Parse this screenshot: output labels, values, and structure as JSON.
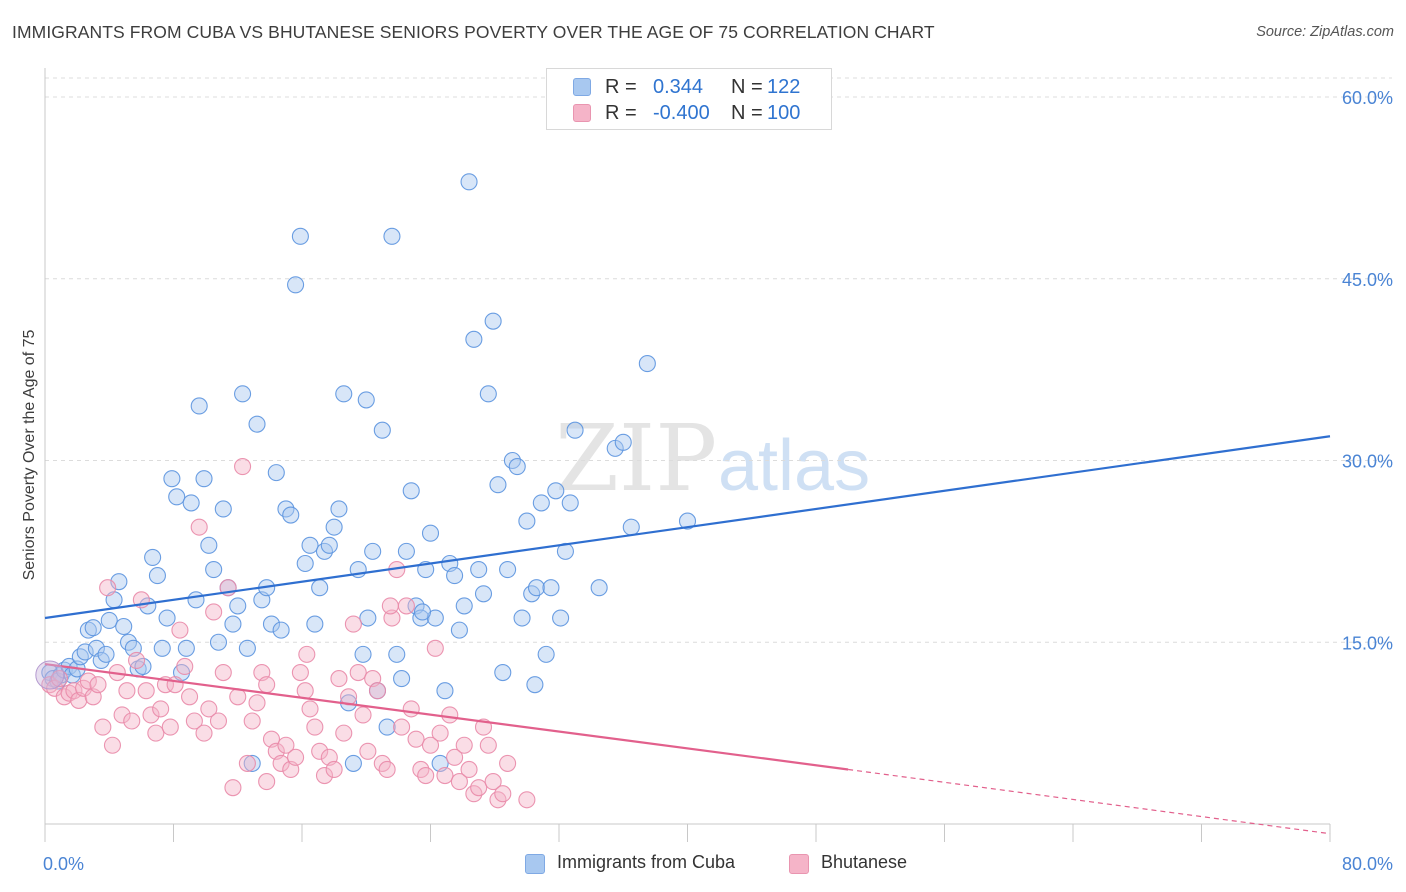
{
  "title": "IMMIGRANTS FROM CUBA VS BHUTANESE SENIORS POVERTY OVER THE AGE OF 75 CORRELATION CHART",
  "source": "Source: ZipAtlas.com",
  "watermark": {
    "zip": "ZIP",
    "atlas": "atlas"
  },
  "legend": {
    "r_label": "R =",
    "n_label": "N =",
    "rows": [
      {
        "r": "0.344",
        "n": "122",
        "color": "#a8c8f0"
      },
      {
        "r": "-0.400",
        "n": "100",
        "color": "#f5b4c8"
      }
    ]
  },
  "chart_data": {
    "type": "scatter",
    "title": "IMMIGRANTS FROM CUBA VS BHUTANESE SENIORS POVERTY OVER THE AGE OF 75 CORRELATION CHART",
    "xlabel": "",
    "ylabel": "Seniors Poverty Over the Age of 75",
    "xlim": [
      0,
      80
    ],
    "ylim": [
      0,
      60
    ],
    "x_tick_labels": [
      "0.0%",
      "80.0%"
    ],
    "y_tick_labels": [
      "15.0%",
      "30.0%",
      "45.0%",
      "60.0%"
    ],
    "y_ticks": [
      15,
      30,
      45,
      60
    ],
    "grid": true,
    "legend_position": "top-center",
    "series": [
      {
        "name": "Immigrants from Cuba",
        "color": "#5b93df",
        "fill": "#a8c8f0",
        "trend": {
          "x": [
            0,
            80
          ],
          "y": [
            17.0,
            32.0
          ],
          "color": "#2f6fd0",
          "dashed_from": null
        },
        "points": [
          [
            0.3,
            12.5
          ],
          [
            0.5,
            12.0
          ],
          [
            0.8,
            11.8
          ],
          [
            1.0,
            12.3
          ],
          [
            1.2,
            12.7
          ],
          [
            1.5,
            13.0
          ],
          [
            1.7,
            12.3
          ],
          [
            2.0,
            12.8
          ],
          [
            2.2,
            13.8
          ],
          [
            2.5,
            14.2
          ],
          [
            2.7,
            16.0
          ],
          [
            3.0,
            16.2
          ],
          [
            3.2,
            14.5
          ],
          [
            3.5,
            13.5
          ],
          [
            3.8,
            14.0
          ],
          [
            4.0,
            16.8
          ],
          [
            4.3,
            18.5
          ],
          [
            4.6,
            20.0
          ],
          [
            4.9,
            16.3
          ],
          [
            5.2,
            15.0
          ],
          [
            5.5,
            14.5
          ],
          [
            5.8,
            12.8
          ],
          [
            6.1,
            13.0
          ],
          [
            6.4,
            18.0
          ],
          [
            6.7,
            22.0
          ],
          [
            7.0,
            20.5
          ],
          [
            7.3,
            14.5
          ],
          [
            7.6,
            17.0
          ],
          [
            7.9,
            28.5
          ],
          [
            8.2,
            27.0
          ],
          [
            8.5,
            12.5
          ],
          [
            8.8,
            14.5
          ],
          [
            9.1,
            26.5
          ],
          [
            9.4,
            18.5
          ],
          [
            9.6,
            34.5
          ],
          [
            9.9,
            28.5
          ],
          [
            10.2,
            23.0
          ],
          [
            10.5,
            21.0
          ],
          [
            10.8,
            15.0
          ],
          [
            11.1,
            26.0
          ],
          [
            11.4,
            19.5
          ],
          [
            11.7,
            16.5
          ],
          [
            12.0,
            18.0
          ],
          [
            12.3,
            35.5
          ],
          [
            12.6,
            14.5
          ],
          [
            12.9,
            5.0
          ],
          [
            13.2,
            33.0
          ],
          [
            13.5,
            18.5
          ],
          [
            13.8,
            19.5
          ],
          [
            14.1,
            16.5
          ],
          [
            14.4,
            29.0
          ],
          [
            14.7,
            16.0
          ],
          [
            15.0,
            26.0
          ],
          [
            15.3,
            25.5
          ],
          [
            15.6,
            44.5
          ],
          [
            15.9,
            48.5
          ],
          [
            16.2,
            21.5
          ],
          [
            16.5,
            23.0
          ],
          [
            16.8,
            16.5
          ],
          [
            17.1,
            19.5
          ],
          [
            17.4,
            22.5
          ],
          [
            17.7,
            23.0
          ],
          [
            18.0,
            24.5
          ],
          [
            18.3,
            26.0
          ],
          [
            18.6,
            35.5
          ],
          [
            18.9,
            10.0
          ],
          [
            19.2,
            5.0
          ],
          [
            19.5,
            21.0
          ],
          [
            19.8,
            14.0
          ],
          [
            20.1,
            17.0
          ],
          [
            20.4,
            22.5
          ],
          [
            20.7,
            11.0
          ],
          [
            21.0,
            32.5
          ],
          [
            21.3,
            8.0
          ],
          [
            21.6,
            48.5
          ],
          [
            21.9,
            14.0
          ],
          [
            22.2,
            12.0
          ],
          [
            22.5,
            22.5
          ],
          [
            22.8,
            27.5
          ],
          [
            23.1,
            18.0
          ],
          [
            23.4,
            17.0
          ],
          [
            23.7,
            21.0
          ],
          [
            24.0,
            24.0
          ],
          [
            24.3,
            17.0
          ],
          [
            24.6,
            5.0
          ],
          [
            24.9,
            11.0
          ],
          [
            25.2,
            21.5
          ],
          [
            25.5,
            20.5
          ],
          [
            25.8,
            16.0
          ],
          [
            26.1,
            18.0
          ],
          [
            26.4,
            53.0
          ],
          [
            26.7,
            40.0
          ],
          [
            27.0,
            21.0
          ],
          [
            27.3,
            19.0
          ],
          [
            27.6,
            35.5
          ],
          [
            27.9,
            41.5
          ],
          [
            28.2,
            28.0
          ],
          [
            28.5,
            12.5
          ],
          [
            28.8,
            21.0
          ],
          [
            29.1,
            30.0
          ],
          [
            29.4,
            29.5
          ],
          [
            29.7,
            17.0
          ],
          [
            30.0,
            25.0
          ],
          [
            30.3,
            19.0
          ],
          [
            30.6,
            19.5
          ],
          [
            30.9,
            26.5
          ],
          [
            31.2,
            14.0
          ],
          [
            31.5,
            19.5
          ],
          [
            31.8,
            27.5
          ],
          [
            32.1,
            17.0
          ],
          [
            32.4,
            22.5
          ],
          [
            32.7,
            26.5
          ],
          [
            33.0,
            32.5
          ],
          [
            34.5,
            19.5
          ],
          [
            35.5,
            31.0
          ],
          [
            36.0,
            31.5
          ],
          [
            37.5,
            38.0
          ],
          [
            40.0,
            25.0
          ],
          [
            36.5,
            24.5
          ],
          [
            30.5,
            11.5
          ],
          [
            23.5,
            17.5
          ],
          [
            20.0,
            35.0
          ]
        ]
      },
      {
        "name": "Bhutanese",
        "color": "#e98aa8",
        "fill": "#f5b4c8",
        "trend": {
          "x": [
            0,
            50,
            80
          ],
          "y": [
            13.2,
            4.5,
            -0.8
          ],
          "color": "#e2608c",
          "dashed_from": 50
        },
        "points": [
          [
            0.3,
            11.5
          ],
          [
            0.6,
            11.2
          ],
          [
            0.9,
            12.0
          ],
          [
            1.2,
            10.5
          ],
          [
            1.5,
            10.8
          ],
          [
            1.8,
            11.0
          ],
          [
            2.1,
            10.2
          ],
          [
            2.4,
            11.2
          ],
          [
            2.7,
            11.8
          ],
          [
            3.0,
            10.5
          ],
          [
            3.3,
            11.5
          ],
          [
            3.6,
            8.0
          ],
          [
            3.9,
            19.5
          ],
          [
            4.2,
            6.5
          ],
          [
            4.5,
            12.5
          ],
          [
            4.8,
            9.0
          ],
          [
            5.1,
            11.0
          ],
          [
            5.4,
            8.5
          ],
          [
            5.7,
            13.5
          ],
          [
            6.0,
            18.5
          ],
          [
            6.3,
            11.0
          ],
          [
            6.6,
            9.0
          ],
          [
            6.9,
            7.5
          ],
          [
            7.2,
            9.5
          ],
          [
            7.5,
            11.5
          ],
          [
            7.8,
            8.0
          ],
          [
            8.1,
            11.5
          ],
          [
            8.4,
            16.0
          ],
          [
            8.7,
            13.0
          ],
          [
            9.0,
            10.5
          ],
          [
            9.3,
            8.5
          ],
          [
            9.6,
            24.5
          ],
          [
            9.9,
            7.5
          ],
          [
            10.2,
            9.5
          ],
          [
            10.5,
            17.5
          ],
          [
            10.8,
            8.5
          ],
          [
            11.1,
            12.5
          ],
          [
            11.4,
            19.5
          ],
          [
            11.7,
            3.0
          ],
          [
            12.0,
            10.5
          ],
          [
            12.3,
            29.5
          ],
          [
            12.6,
            5.0
          ],
          [
            12.9,
            8.5
          ],
          [
            13.2,
            10.0
          ],
          [
            13.5,
            12.5
          ],
          [
            13.8,
            11.5
          ],
          [
            14.1,
            7.0
          ],
          [
            14.4,
            6.0
          ],
          [
            14.7,
            5.0
          ],
          [
            15.0,
            6.5
          ],
          [
            15.3,
            4.5
          ],
          [
            15.6,
            5.5
          ],
          [
            15.9,
            12.5
          ],
          [
            16.2,
            11.0
          ],
          [
            16.5,
            9.5
          ],
          [
            16.8,
            8.0
          ],
          [
            17.1,
            6.0
          ],
          [
            17.4,
            4.0
          ],
          [
            17.7,
            5.5
          ],
          [
            18.0,
            4.5
          ],
          [
            18.3,
            12.0
          ],
          [
            18.6,
            7.5
          ],
          [
            18.9,
            10.5
          ],
          [
            19.2,
            16.5
          ],
          [
            19.5,
            12.5
          ],
          [
            19.8,
            9.0
          ],
          [
            20.1,
            6.0
          ],
          [
            20.4,
            12.0
          ],
          [
            20.7,
            11.0
          ],
          [
            21.0,
            5.0
          ],
          [
            21.3,
            4.5
          ],
          [
            21.6,
            17.0
          ],
          [
            21.9,
            21.0
          ],
          [
            22.2,
            8.0
          ],
          [
            22.5,
            18.0
          ],
          [
            22.8,
            9.5
          ],
          [
            23.1,
            7.0
          ],
          [
            23.4,
            4.5
          ],
          [
            23.7,
            4.0
          ],
          [
            24.0,
            6.5
          ],
          [
            24.3,
            14.5
          ],
          [
            24.6,
            7.5
          ],
          [
            24.9,
            4.0
          ],
          [
            25.2,
            9.0
          ],
          [
            25.5,
            5.5
          ],
          [
            25.8,
            3.5
          ],
          [
            26.1,
            6.5
          ],
          [
            26.4,
            4.5
          ],
          [
            26.7,
            2.5
          ],
          [
            27.0,
            3.0
          ],
          [
            27.3,
            8.0
          ],
          [
            27.6,
            6.5
          ],
          [
            27.9,
            3.5
          ],
          [
            28.2,
            2.0
          ],
          [
            28.5,
            2.5
          ],
          [
            28.8,
            5.0
          ],
          [
            30.0,
            2.0
          ],
          [
            21.5,
            18.0
          ],
          [
            16.3,
            14.0
          ],
          [
            13.8,
            3.5
          ]
        ]
      }
    ]
  },
  "bottom_legend": [
    {
      "label": "Immigrants from Cuba",
      "color": "#a8c8f0"
    },
    {
      "label": "Bhutanese",
      "color": "#f5b4c8"
    }
  ]
}
